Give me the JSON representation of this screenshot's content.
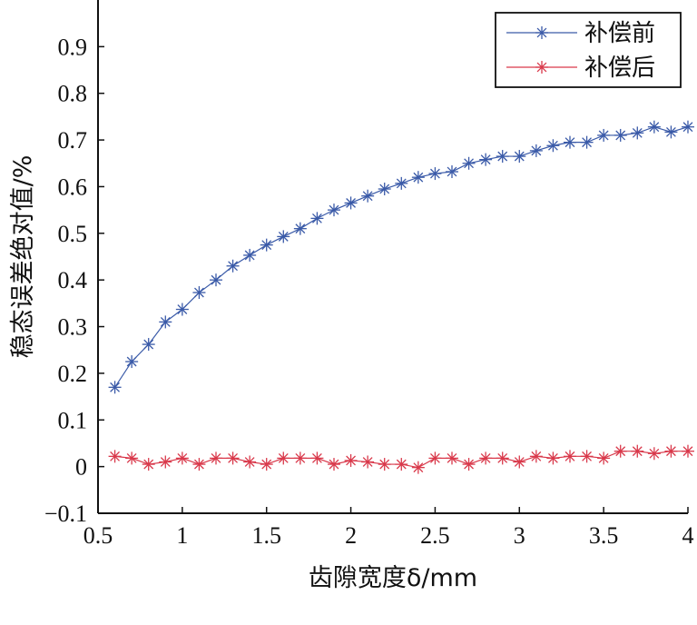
{
  "chart_data": {
    "type": "line",
    "title": "",
    "xlabel": "齿隙宽度δ/mm",
    "ylabel": "稳态误差绝对值/%",
    "xlim": [
      0.5,
      4
    ],
    "ylim": [
      -0.1,
      1.0
    ],
    "xticks": [
      "0.5",
      "1",
      "1.5",
      "2",
      "2.5",
      "3",
      "3.5",
      "4"
    ],
    "yticks": [
      "−0.1",
      "0",
      "0.1",
      "0.2",
      "0.3",
      "0.4",
      "0.5",
      "0.6",
      "0.7",
      "0.8",
      "0.9"
    ],
    "grid": false,
    "legend_position": "top-right",
    "x": [
      0.6,
      0.7,
      0.8,
      0.9,
      1.0,
      1.1,
      1.2,
      1.3,
      1.4,
      1.5,
      1.6,
      1.7,
      1.8,
      1.9,
      2.0,
      2.1,
      2.2,
      2.3,
      2.4,
      2.5,
      2.6,
      2.7,
      2.8,
      2.9,
      3.0,
      3.1,
      3.2,
      3.3,
      3.4,
      3.5,
      3.6,
      3.7,
      3.8,
      3.9,
      4.0
    ],
    "series": [
      {
        "name": "补偿前",
        "color": "#3a5aa8",
        "marker": "asterisk",
        "values": [
          0.17,
          0.225,
          0.262,
          0.31,
          0.337,
          0.373,
          0.4,
          0.43,
          0.453,
          0.475,
          0.493,
          0.51,
          0.532,
          0.55,
          0.565,
          0.58,
          0.595,
          0.607,
          0.62,
          0.628,
          0.632,
          0.65,
          0.658,
          0.665,
          0.665,
          0.677,
          0.688,
          0.695,
          0.695,
          0.71,
          0.71,
          0.715,
          0.728,
          0.717,
          0.728
        ]
      },
      {
        "name": "补偿后",
        "color": "#d9394b",
        "marker": "asterisk",
        "values": [
          0.022,
          0.018,
          0.005,
          0.01,
          0.018,
          0.005,
          0.018,
          0.018,
          0.01,
          0.005,
          0.018,
          0.018,
          0.018,
          0.005,
          0.013,
          0.01,
          0.005,
          0.005,
          -0.002,
          0.018,
          0.018,
          0.005,
          0.018,
          0.018,
          0.01,
          0.022,
          0.018,
          0.022,
          0.022,
          0.018,
          0.033,
          0.033,
          0.028,
          0.033,
          0.033
        ]
      }
    ]
  }
}
